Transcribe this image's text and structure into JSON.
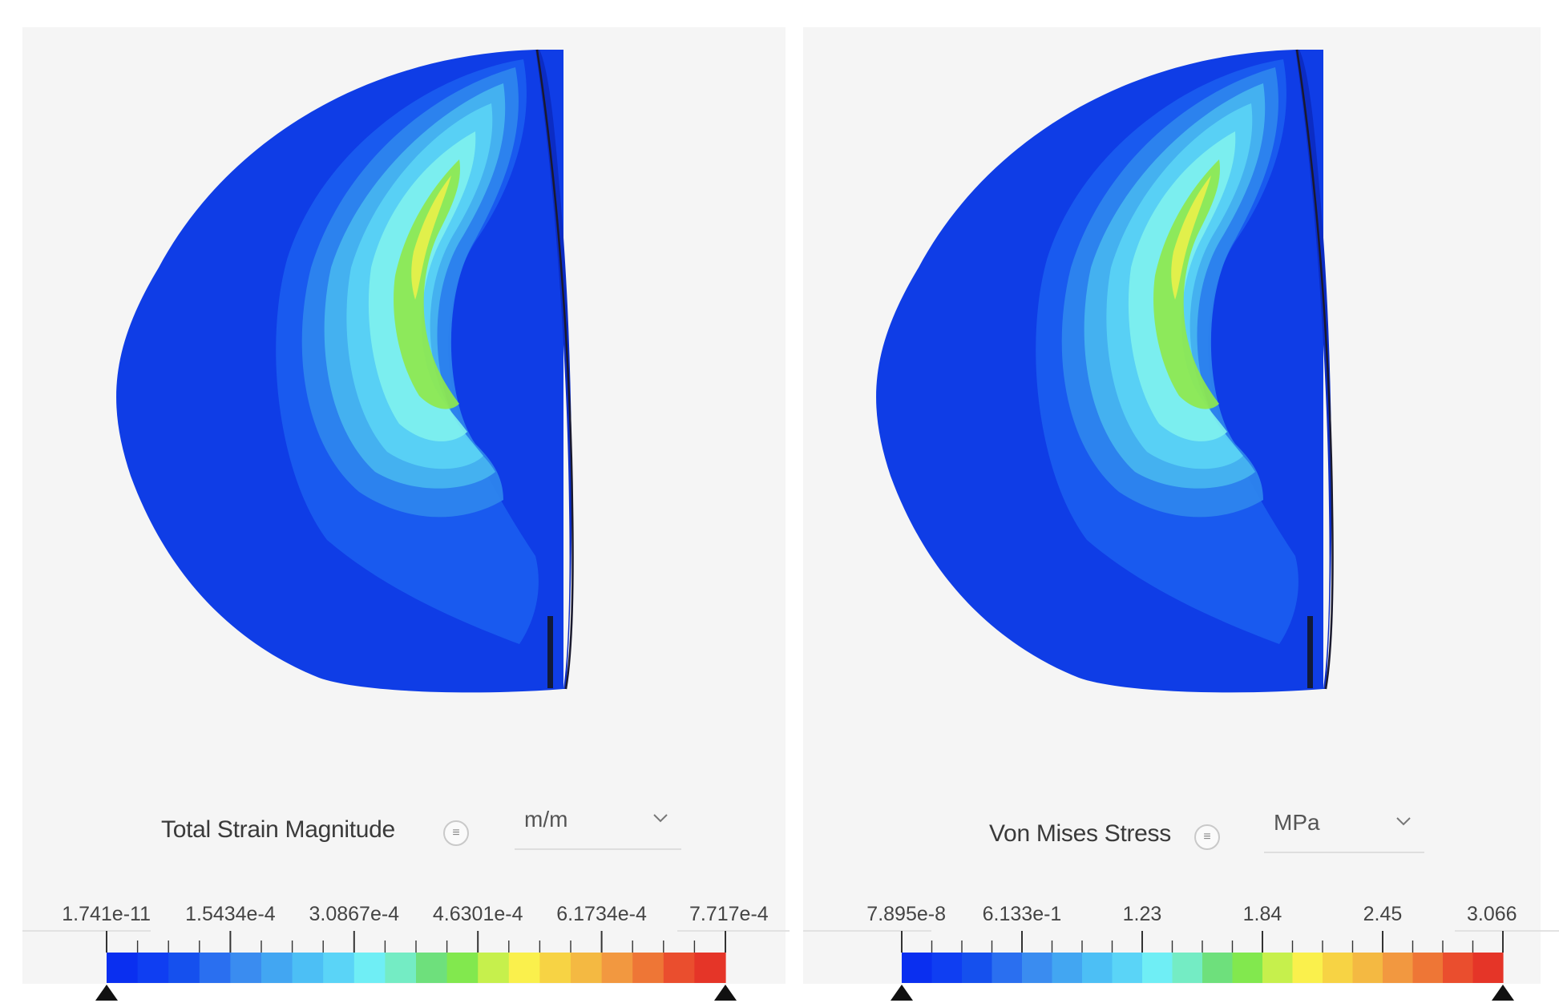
{
  "panels": [
    {
      "id": "left",
      "legend": {
        "title": "Total Strain Magnitude",
        "unit": "m/m",
        "ticks": [
          "1.741e-11",
          "1.5434e-4",
          "3.0867e-4",
          "4.6301e-4",
          "6.1734e-4",
          "7.717e-4"
        ],
        "min_label": "1.741e-11",
        "max_label": "7.717e-4"
      }
    },
    {
      "id": "right",
      "legend": {
        "title": "Von Mises Stress",
        "unit": "MPa",
        "ticks": [
          "7.895e-8",
          "6.133e-1",
          "1.23",
          "1.84",
          "2.45",
          "3.066"
        ],
        "min_label": "7.895e-8",
        "max_label": "3.066"
      }
    }
  ],
  "colorbar": [
    "#0a2ff0",
    "#0f3ef2",
    "#1550ee",
    "#2a6ff0",
    "#3a8cf0",
    "#42a6f2",
    "#4cbff5",
    "#5ad4f7",
    "#6feef5",
    "#74ecc4",
    "#6ee07c",
    "#82e84e",
    "#c6f04c",
    "#faf04c",
    "#f7d344",
    "#f4b942",
    "#f29840",
    "#ee7636",
    "#ea4e2e",
    "#e53528"
  ],
  "model_colors": {
    "base": "#0f3de6",
    "zone1": "#1a5cf0",
    "zone2": "#2e86ee",
    "zone3": "#46b5f0",
    "zone4": "#5ad2f5",
    "zone5": "#7ef0ee",
    "peak": "#8ee84e",
    "hot": "#e8f04a"
  }
}
